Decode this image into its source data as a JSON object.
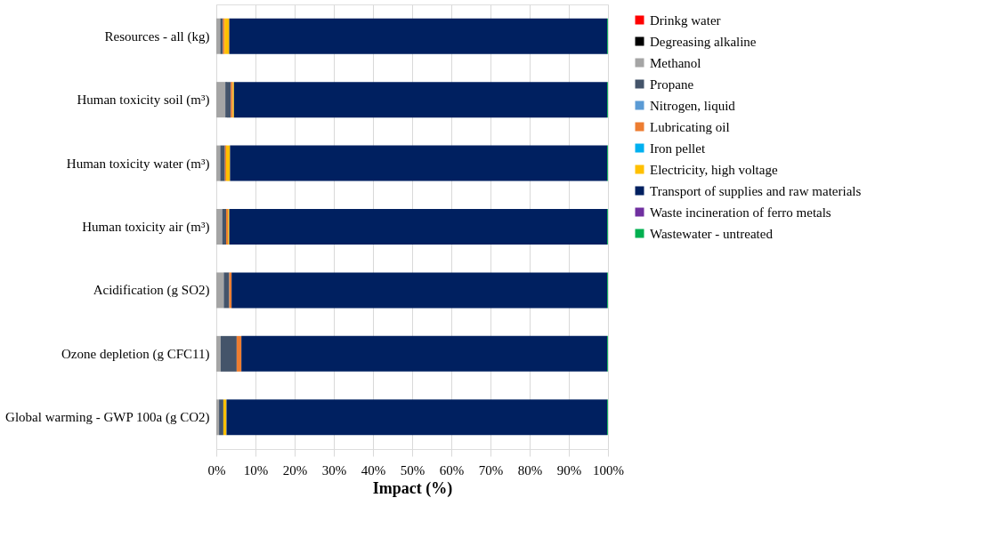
{
  "chart_data": {
    "type": "bar",
    "orientation": "horizontal",
    "stacked": true,
    "xlabel": "Impact (%)",
    "categories": [
      "Resources - all (kg)",
      "Human toxicity soil (m³)",
      "Human toxicity water  (m³)",
      "Human toxicity air (m³)",
      "Acidification (g SO2)",
      "Ozone depletion (g CFC11)",
      "Global warming - GWP 100a (g CO2)"
    ],
    "series": [
      {
        "name": "Drinkg water",
        "color": "#ff0000",
        "values": [
          0,
          0,
          0,
          0,
          0,
          0,
          0
        ]
      },
      {
        "name": "Degreasing alkaline",
        "color": "#000000",
        "values": [
          0,
          0,
          0,
          0,
          0,
          0,
          0
        ]
      },
      {
        "name": "Methanol",
        "color": "#a5a5a5",
        "values": [
          1.0,
          2.3,
          1.0,
          1.5,
          1.9,
          1.1,
          0.7
        ]
      },
      {
        "name": "Propane",
        "color": "#44546a",
        "values": [
          0.7,
          1.4,
          1.2,
          1.0,
          1.4,
          4.1,
          1.1
        ]
      },
      {
        "name": "Nitrogen, liquid",
        "color": "#5b9bd5",
        "values": [
          0,
          0,
          0,
          0,
          0,
          0,
          0
        ]
      },
      {
        "name": "Lubricating oil",
        "color": "#ed7d31",
        "values": [
          0.4,
          0.5,
          0.3,
          0.5,
          0.6,
          1.2,
          0
        ]
      },
      {
        "name": "Iron pellet",
        "color": "#00b0f0",
        "values": [
          0,
          0,
          0,
          0,
          0,
          0,
          0
        ]
      },
      {
        "name": "Electricity, high     voltage",
        "color": "#ffc000",
        "values": [
          1.2,
          0.3,
          1.0,
          0.3,
          0,
          0,
          0.8
        ]
      },
      {
        "name": "Transport of supplies and raw materials",
        "color": "#002060",
        "values": [
          96.5,
          95.3,
          96.3,
          96.5,
          95.9,
          93.4,
          97.2
        ]
      },
      {
        "name": "Waste incineration of ferro metals",
        "color": "#7030a0",
        "values": [
          0,
          0,
          0,
          0,
          0,
          0,
          0
        ]
      },
      {
        "name": "Wastewater - untreated",
        "color": "#00b050",
        "values": [
          0.2,
          0.2,
          0.2,
          0.2,
          0.2,
          0.2,
          0.2
        ]
      }
    ],
    "xlim": [
      0,
      100
    ],
    "xticks": [
      {
        "value": 0,
        "label": "0%"
      },
      {
        "value": 10,
        "label": "10%"
      },
      {
        "value": 20,
        "label": "20%"
      },
      {
        "value": 30,
        "label": "30%"
      },
      {
        "value": 40,
        "label": "40%"
      },
      {
        "value": 50,
        "label": "50%"
      },
      {
        "value": 60,
        "label": "60%"
      },
      {
        "value": 70,
        "label": "70%"
      },
      {
        "value": 80,
        "label": "80%"
      },
      {
        "value": 90,
        "label": "90%"
      },
      {
        "value": 100,
        "label": "100%"
      }
    ],
    "grid": "x",
    "legend": "right"
  }
}
